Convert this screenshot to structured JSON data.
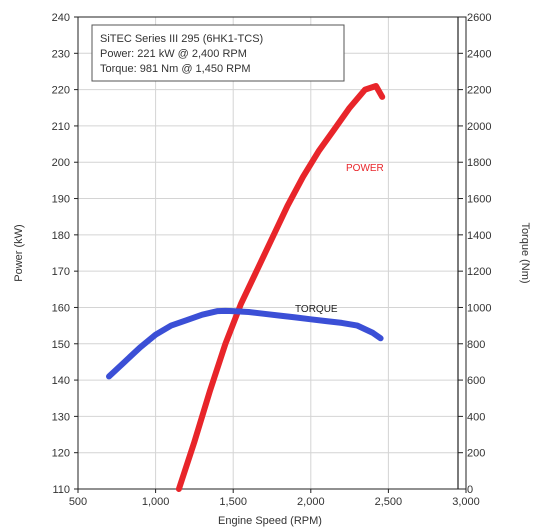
{
  "chart_data": {
    "type": "line",
    "title": "",
    "info_box": [
      "SiTEC Series III 295 (6HK1-TCS)",
      "Power: 221 kW @ 2,400 RPM",
      "Torque: 981 Nm @ 1,450 RPM"
    ],
    "xlabel": "Engine Speed (RPM)",
    "ylabel_left": "Power (kW)",
    "ylabel_right": "Torque (Nm)",
    "xlim": [
      500,
      3000
    ],
    "ylim_left": [
      110,
      240
    ],
    "ylim_right": [
      0,
      2600
    ],
    "x_ticks": [
      500,
      1000,
      1500,
      2000,
      2500,
      3000
    ],
    "x_tick_labels": [
      "500",
      "1,000",
      "1,500",
      "2,000",
      "2,500",
      "3,000"
    ],
    "y_left_ticks": [
      110,
      120,
      130,
      140,
      150,
      160,
      170,
      180,
      190,
      200,
      210,
      220,
      230,
      240
    ],
    "y_right_ticks": [
      0,
      200,
      400,
      600,
      800,
      1000,
      1200,
      1400,
      1600,
      1800,
      2000,
      2200,
      2400,
      2600
    ],
    "grid": true,
    "series": [
      {
        "name": "POWER",
        "axis": "left",
        "color": "#e8252a",
        "x": [
          1150,
          1250,
          1350,
          1450,
          1550,
          1650,
          1750,
          1850,
          1950,
          2050,
          2150,
          2250,
          2350,
          2420,
          2460
        ],
        "y": [
          110,
          123,
          137,
          150,
          161,
          170,
          179,
          188,
          196,
          203,
          209,
          215,
          220,
          221,
          218
        ]
      },
      {
        "name": "TORQUE",
        "axis": "right",
        "color": "#3b4fd6",
        "x": [
          700,
          800,
          900,
          1000,
          1100,
          1200,
          1300,
          1400,
          1450,
          1500,
          1600,
          1700,
          1800,
          1900,
          2000,
          2100,
          2200,
          2300,
          2400,
          2450
        ],
        "y": [
          620,
          700,
          780,
          850,
          900,
          930,
          960,
          980,
          981,
          980,
          975,
          965,
          955,
          945,
          935,
          925,
          915,
          900,
          860,
          830
        ]
      }
    ]
  }
}
